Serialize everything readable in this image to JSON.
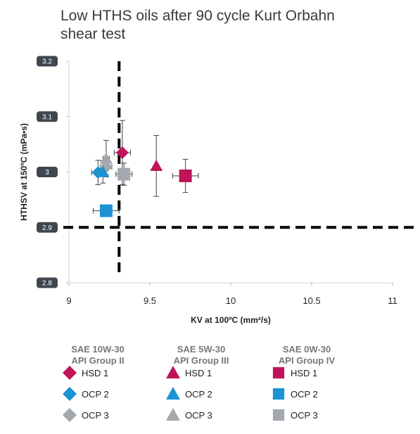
{
  "chart_data": {
    "type": "scatter",
    "title_lines": [
      "Low HTHS oils after 90 cycle Kurt Orbahn",
      "shear test"
    ],
    "xlabel": "KV at 100ºC (mm²/s)",
    "ylabel": "HTHSV at 150ºC (mPa•s)",
    "xlim": [
      9,
      11
    ],
    "ylim": [
      2.8,
      3.2
    ],
    "x_ticks": [
      "9",
      "9.5",
      "10",
      "10.5",
      "11"
    ],
    "y_ticks": [
      "3.2",
      "3.1",
      "3",
      "2.9",
      "2.8"
    ],
    "grid": false,
    "reference_lines": {
      "x": 9.31,
      "y": 2.9
    },
    "groups": [
      {
        "line1": "SAE 10W-30",
        "line2": "API Group II",
        "marker": "diamond"
      },
      {
        "line1": "SAE 5W-30",
        "line2": "API Group III",
        "marker": "triangle"
      },
      {
        "line1": "SAE 0W-30",
        "line2": "API Group IV",
        "marker": "square"
      }
    ],
    "series_names": [
      "HSD 1",
      "OCP 2",
      "OCP 3"
    ],
    "colors": {
      "HSD 1": "#c0135a",
      "OCP 2": "#1d93d2",
      "OCP 3": "#a3a9ae"
    },
    "points": [
      {
        "group": 0,
        "series": "HSD 1",
        "x": 9.33,
        "y": 3.035,
        "xerr": 0.05,
        "yerr": 0.058
      },
      {
        "group": 0,
        "series": "OCP 2",
        "x": 9.18,
        "y": 2.999,
        "xerr": 0.04,
        "yerr": 0.022
      },
      {
        "group": 0,
        "series": "OCP 3",
        "x": 9.23,
        "y": 3.009,
        "xerr": 0.035,
        "yerr": 0.014
      },
      {
        "group": 1,
        "series": "HSD 1",
        "x": 9.54,
        "y": 3.011,
        "xerr": 0,
        "yerr": 0.055
      },
      {
        "group": 1,
        "series": "OCP 2",
        "x": 9.21,
        "y": 3.0,
        "xerr": 0.02,
        "yerr": 0.02
      },
      {
        "group": 1,
        "series": "OCP 3",
        "x": 9.23,
        "y": 3.024,
        "xerr": 0.02,
        "yerr": 0.033
      },
      {
        "group": 2,
        "series": "HSD 1",
        "x": 9.72,
        "y": 2.993,
        "xerr": 0.08,
        "yerr": 0.03
      },
      {
        "group": 2,
        "series": "OCP 2",
        "x": 9.23,
        "y": 2.93,
        "xerr": 0.08,
        "yerr": 0
      },
      {
        "group": 2,
        "series": "OCP 3",
        "x": 9.34,
        "y": 2.996,
        "xerr": 0.05,
        "yerr": 0.02
      }
    ]
  }
}
